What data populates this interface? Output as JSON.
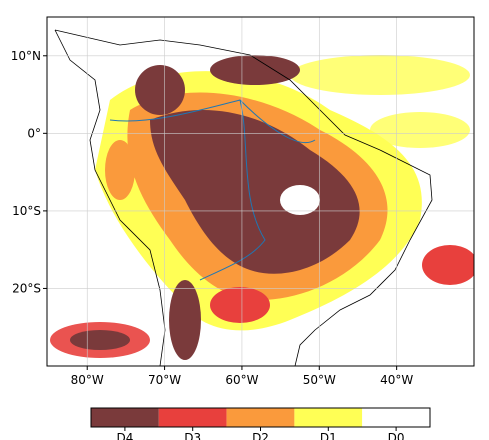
{
  "chart_data": {
    "type": "map",
    "xlim": [
      -85.2,
      -30
    ],
    "ylim": [
      -30,
      15
    ],
    "xticks": [
      {
        "value": -80,
        "label": "80°W"
      },
      {
        "value": -70,
        "label": "70°W"
      },
      {
        "value": -60,
        "label": "60°W"
      },
      {
        "value": -50,
        "label": "50°W"
      },
      {
        "value": -40,
        "label": "40°W"
      }
    ],
    "yticks": [
      {
        "value": 10,
        "label": "10°N"
      },
      {
        "value": 0,
        "label": "0°"
      },
      {
        "value": -10,
        "label": "10°S"
      },
      {
        "value": -20,
        "label": "20°S"
      }
    ],
    "grid": true,
    "legend": {
      "names": [
        "D4",
        "D3",
        "D2",
        "D1",
        "D0"
      ],
      "colors": [
        "#7a3a3b",
        "#e8403d",
        "#fa9a3c",
        "#ffff55",
        "#ffffff"
      ]
    }
  }
}
